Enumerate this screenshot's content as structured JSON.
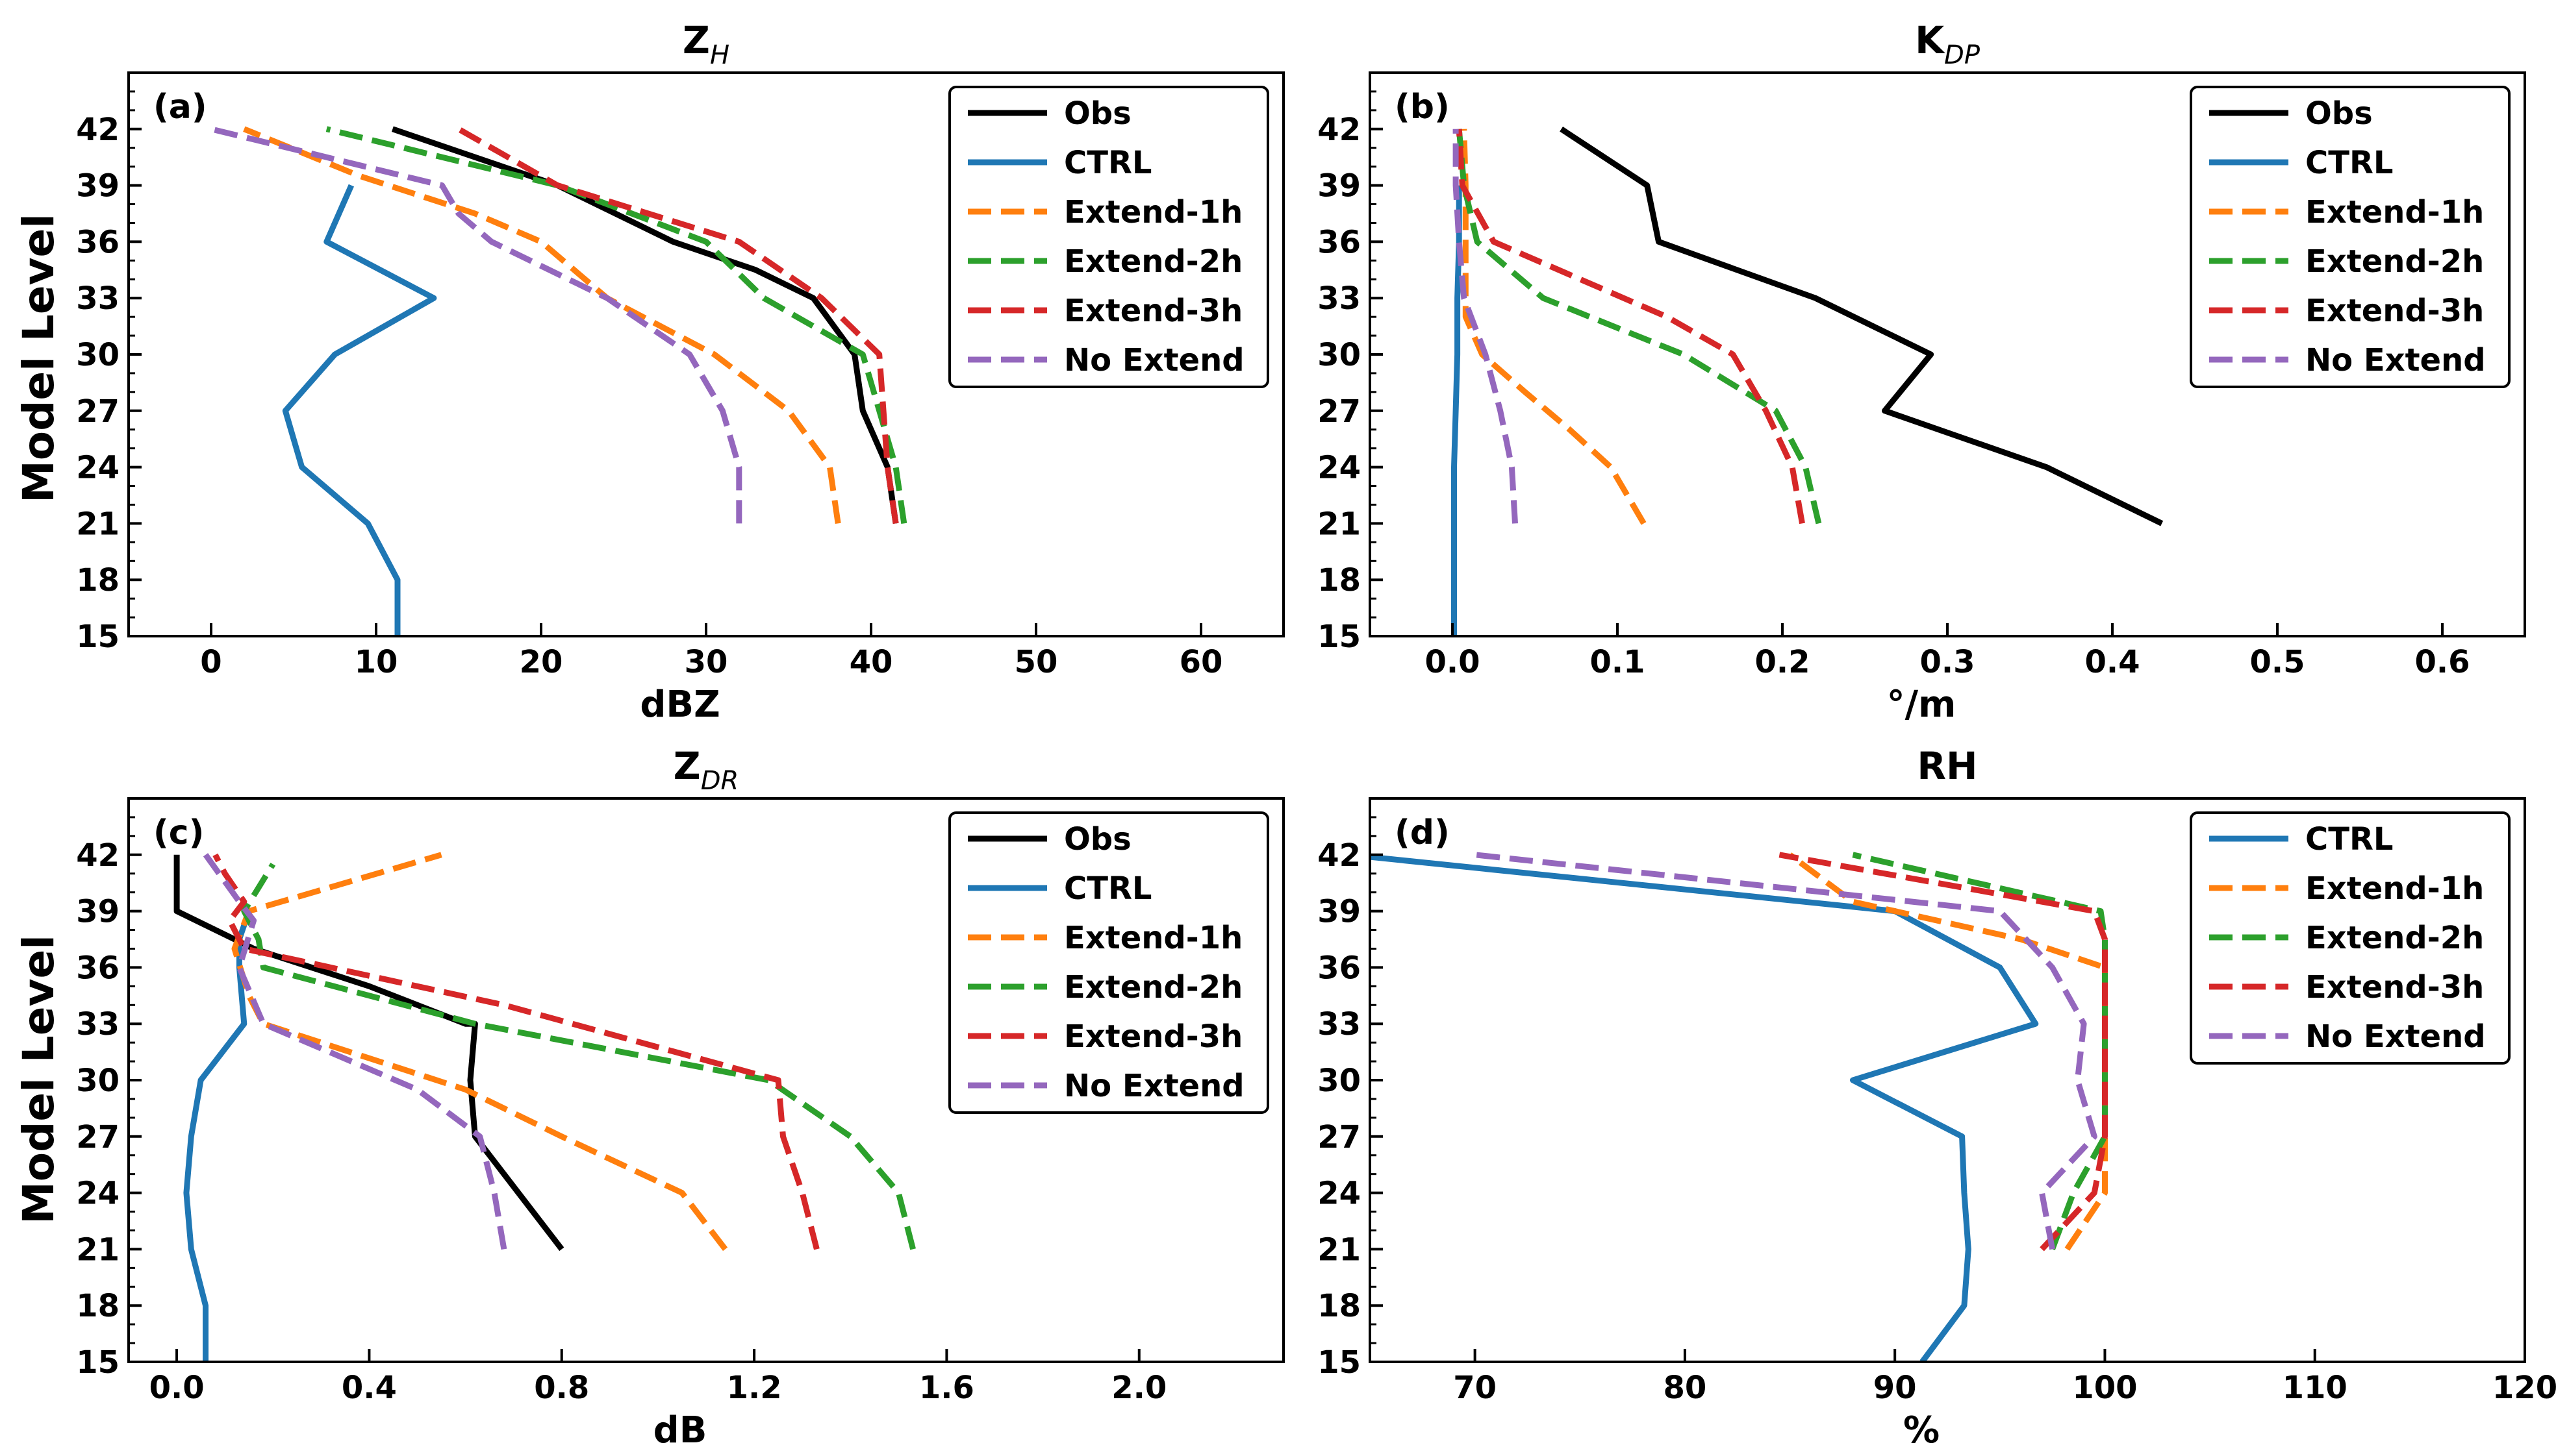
{
  "figure": {
    "ylabel": "Model  Level",
    "colors": {
      "Obs": "#000000",
      "CTRL": "#1f77b4",
      "Extend-1h": "#ff7f0e",
      "Extend-2h": "#2ca02c",
      "Extend-3h": "#d62728",
      "No Extend": "#9467bd"
    }
  },
  "chart_data": [
    {
      "type": "line",
      "panel_label": "(a)",
      "title_main": "Z",
      "title_sub": "H",
      "xlabel": "dBZ",
      "xlim": [
        -5,
        65
      ],
      "xticks": [
        0,
        10,
        20,
        30,
        40,
        50,
        60
      ],
      "xtick_labels": [
        "0",
        "10",
        "20",
        "30",
        "40",
        "50",
        "60"
      ],
      "ylim": [
        15,
        45
      ],
      "yticks": [
        15,
        18,
        21,
        24,
        27,
        30,
        33,
        36,
        39,
        42
      ],
      "legend_position": "top-right",
      "series": [
        {
          "name": "Obs",
          "x": [
            41.5,
            41,
            39.5,
            39,
            36.5,
            33,
            28,
            21,
            11
          ],
          "y": [
            21,
            24,
            27,
            30,
            33,
            34.5,
            36,
            39,
            42
          ]
        },
        {
          "name": "CTRL",
          "x": [
            11.3,
            11.3,
            11.3,
            9.5,
            5.5,
            4.5,
            7.5,
            13.5,
            7,
            8.5
          ],
          "y": [
            15,
            18,
            18,
            21,
            24,
            27,
            30,
            33,
            36,
            39
          ]
        },
        {
          "name": "Extend-1h",
          "x": [
            38,
            37.5,
            35,
            30.5,
            24,
            20,
            16,
            9,
            2
          ],
          "y": [
            21,
            24,
            27,
            30,
            33,
            36,
            37.5,
            39.5,
            42
          ]
        },
        {
          "name": "Extend-2h",
          "x": [
            42,
            41.5,
            39.5,
            33.5,
            30,
            21,
            7
          ],
          "y": [
            21,
            24,
            30,
            33,
            36,
            39,
            42
          ]
        },
        {
          "name": "Extend-3h",
          "x": [
            41.5,
            41,
            40.5,
            37,
            32,
            21,
            15
          ],
          "y": [
            21,
            24,
            30,
            33,
            36,
            39,
            42
          ]
        },
        {
          "name": "No Extend",
          "x": [
            32,
            32,
            31,
            29,
            24,
            17,
            15,
            14,
            0
          ],
          "y": [
            21,
            24,
            27,
            30,
            33,
            36,
            37.5,
            39,
            42
          ]
        }
      ],
      "legend": [
        "Obs",
        "CTRL",
        "Extend-1h",
        "Extend-2h",
        "Extend-3h",
        "No Extend"
      ]
    },
    {
      "type": "line",
      "panel_label": "(b)",
      "title_main": "K",
      "title_sub": "DP",
      "xlabel": "°/m",
      "xlim": [
        -0.05,
        0.65
      ],
      "xticks": [
        0.0,
        0.1,
        0.2,
        0.3,
        0.4,
        0.5,
        0.6
      ],
      "xtick_labels": [
        "0.0",
        "0.1",
        "0.2",
        "0.3",
        "0.4",
        "0.5",
        "0.6"
      ],
      "ylim": [
        15,
        45
      ],
      "yticks": [
        15,
        18,
        21,
        24,
        27,
        30,
        33,
        36,
        39,
        42
      ],
      "legend_position": "top-right",
      "series": [
        {
          "name": "Obs",
          "x": [
            0.43,
            0.36,
            0.262,
            0.29,
            0.22,
            0.125,
            0.118,
            0.066
          ],
          "y": [
            21,
            24,
            27,
            30,
            33,
            36,
            39,
            42
          ]
        },
        {
          "name": "CTRL",
          "x": [
            0.001,
            0.001,
            0.001,
            0.001,
            0.002,
            0.003,
            0.003,
            0.004,
            0.004
          ],
          "y": [
            15,
            18,
            21,
            24,
            27,
            30,
            33,
            36,
            39
          ]
        },
        {
          "name": "Extend-1h",
          "x": [
            0.116,
            0.096,
            0.071,
            0.044,
            0.018,
            0.008,
            0.008,
            0.008,
            0.008,
            0.007
          ],
          "y": [
            21,
            24,
            26,
            28,
            30,
            32,
            34,
            36,
            39,
            42
          ]
        },
        {
          "name": "Extend-2h",
          "x": [
            0.222,
            0.214,
            0.196,
            0.14,
            0.055,
            0.015,
            0.007,
            0.004
          ],
          "y": [
            21,
            24,
            27,
            30,
            33,
            36,
            39,
            42
          ]
        },
        {
          "name": "Extend-3h",
          "x": [
            0.212,
            0.206,
            0.19,
            0.17,
            0.13,
            0.025,
            0.006,
            0.004
          ],
          "y": [
            21,
            24,
            27,
            30,
            32,
            36,
            39,
            42
          ]
        },
        {
          "name": "No Extend",
          "x": [
            0.038,
            0.036,
            0.029,
            0.02,
            0.007,
            0.004,
            0.002,
            0.002
          ],
          "y": [
            21,
            24,
            27,
            30,
            33,
            36,
            39,
            42
          ]
        }
      ],
      "legend": [
        "Obs",
        "CTRL",
        "Extend-1h",
        "Extend-2h",
        "Extend-3h",
        "No Extend"
      ]
    },
    {
      "type": "line",
      "panel_label": "(c)",
      "title_main": "Z",
      "title_sub": "DR",
      "xlabel": "dB",
      "xlim": [
        -0.1,
        2.3
      ],
      "xticks": [
        0.0,
        0.4,
        0.8,
        1.2,
        1.6,
        2.0
      ],
      "xtick_labels": [
        "0.0",
        "0.4",
        "0.8",
        "1.2",
        "1.6",
        "2.0"
      ],
      "ylim": [
        15,
        45
      ],
      "yticks": [
        15,
        18,
        21,
        24,
        27,
        30,
        33,
        36,
        39,
        42
      ],
      "legend_position": "top-right",
      "series": [
        {
          "name": "Obs",
          "x": [
            0.8,
            0.62,
            0.61,
            0.62,
            0.6,
            0.4,
            0.16,
            0.0,
            0.0
          ],
          "y": [
            21,
            27,
            30,
            33,
            33,
            35,
            37,
            39,
            42
          ]
        },
        {
          "name": "CTRL",
          "x": [
            0.06,
            0.06,
            0.06,
            0.03,
            0.02,
            0.03,
            0.05,
            0.14,
            0.13,
            0.13,
            0.15
          ],
          "y": [
            15,
            18,
            18,
            21,
            24,
            27,
            30,
            33,
            36,
            37.5,
            39
          ]
        },
        {
          "name": "Extend-1h",
          "x": [
            1.14,
            1.05,
            0.8,
            0.6,
            0.18,
            0.15,
            0.12,
            0.15,
            0.55
          ],
          "y": [
            21,
            24,
            27,
            29.5,
            33,
            34.5,
            37,
            39,
            42
          ]
        },
        {
          "name": "Extend-2h",
          "x": [
            1.53,
            1.5,
            1.4,
            1.23,
            0.62,
            0.18,
            0.17,
            0.14,
            0.2
          ],
          "y": [
            21,
            24,
            27,
            30,
            33,
            36,
            37.5,
            39,
            41.5
          ]
        },
        {
          "name": "Extend-3h",
          "x": [
            1.33,
            1.3,
            1.26,
            1.25,
            0.68,
            0.14,
            0.11,
            0.14,
            0.1,
            0.08
          ],
          "y": [
            21,
            24,
            27,
            30,
            34,
            37,
            38.5,
            39.5,
            41,
            42
          ]
        },
        {
          "name": "No Extend",
          "x": [
            0.68,
            0.66,
            0.63,
            0.5,
            0.18,
            0.13,
            0.16,
            0.13,
            0.06
          ],
          "y": [
            21,
            24,
            27,
            29.5,
            33,
            36,
            38.5,
            39.5,
            42
          ]
        }
      ],
      "legend": [
        "Obs",
        "CTRL",
        "Extend-1h",
        "Extend-2h",
        "Extend-3h",
        "No Extend"
      ]
    },
    {
      "type": "line",
      "panel_label": "(d)",
      "title_main": "RH",
      "title_sub": "",
      "xlabel": "%",
      "xlim": [
        65,
        120
      ],
      "xticks": [
        70,
        80,
        90,
        100,
        110,
        120
      ],
      "xtick_labels": [
        "70",
        "80",
        "90",
        "100",
        "110",
        "120"
      ],
      "ylim": [
        15,
        45
      ],
      "yticks": [
        15,
        18,
        21,
        24,
        27,
        30,
        33,
        36,
        39,
        42
      ],
      "legend_position": "top-right",
      "series": [
        {
          "name": "CTRL",
          "x": [
            91.3,
            93.3,
            93.5,
            93.3,
            93.2,
            88,
            96.7,
            95,
            90,
            64
          ],
          "y": [
            15,
            18,
            21,
            24,
            27,
            30,
            33,
            36,
            39,
            42
          ]
        },
        {
          "name": "Extend-1h",
          "x": [
            98.2,
            100,
            100,
            100,
            100,
            100,
            100,
            96,
            88,
            85
          ],
          "y": [
            21,
            24,
            27,
            30,
            33,
            35,
            36,
            37.5,
            39.5,
            42
          ]
        },
        {
          "name": "Extend-2h",
          "x": [
            97.5,
            98.5,
            100,
            100,
            100,
            100,
            100,
            99.8,
            88
          ],
          "y": [
            21,
            24,
            27,
            30,
            33,
            36,
            37.5,
            39,
            42
          ]
        },
        {
          "name": "Extend-3h",
          "x": [
            97,
            99.5,
            100,
            100,
            100,
            100,
            100,
            99.5,
            84.5
          ],
          "y": [
            21,
            24,
            27,
            30,
            33,
            36,
            37.5,
            39,
            42
          ]
        },
        {
          "name": "No Extend",
          "x": [
            97.5,
            97,
            99.5,
            98.7,
            99,
            97.5,
            95,
            70
          ],
          "y": [
            21,
            24,
            27,
            30,
            33,
            36,
            39,
            42
          ]
        }
      ],
      "legend": [
        "CTRL",
        "Extend-1h",
        "Extend-2h",
        "Extend-3h",
        "No Extend"
      ]
    }
  ]
}
